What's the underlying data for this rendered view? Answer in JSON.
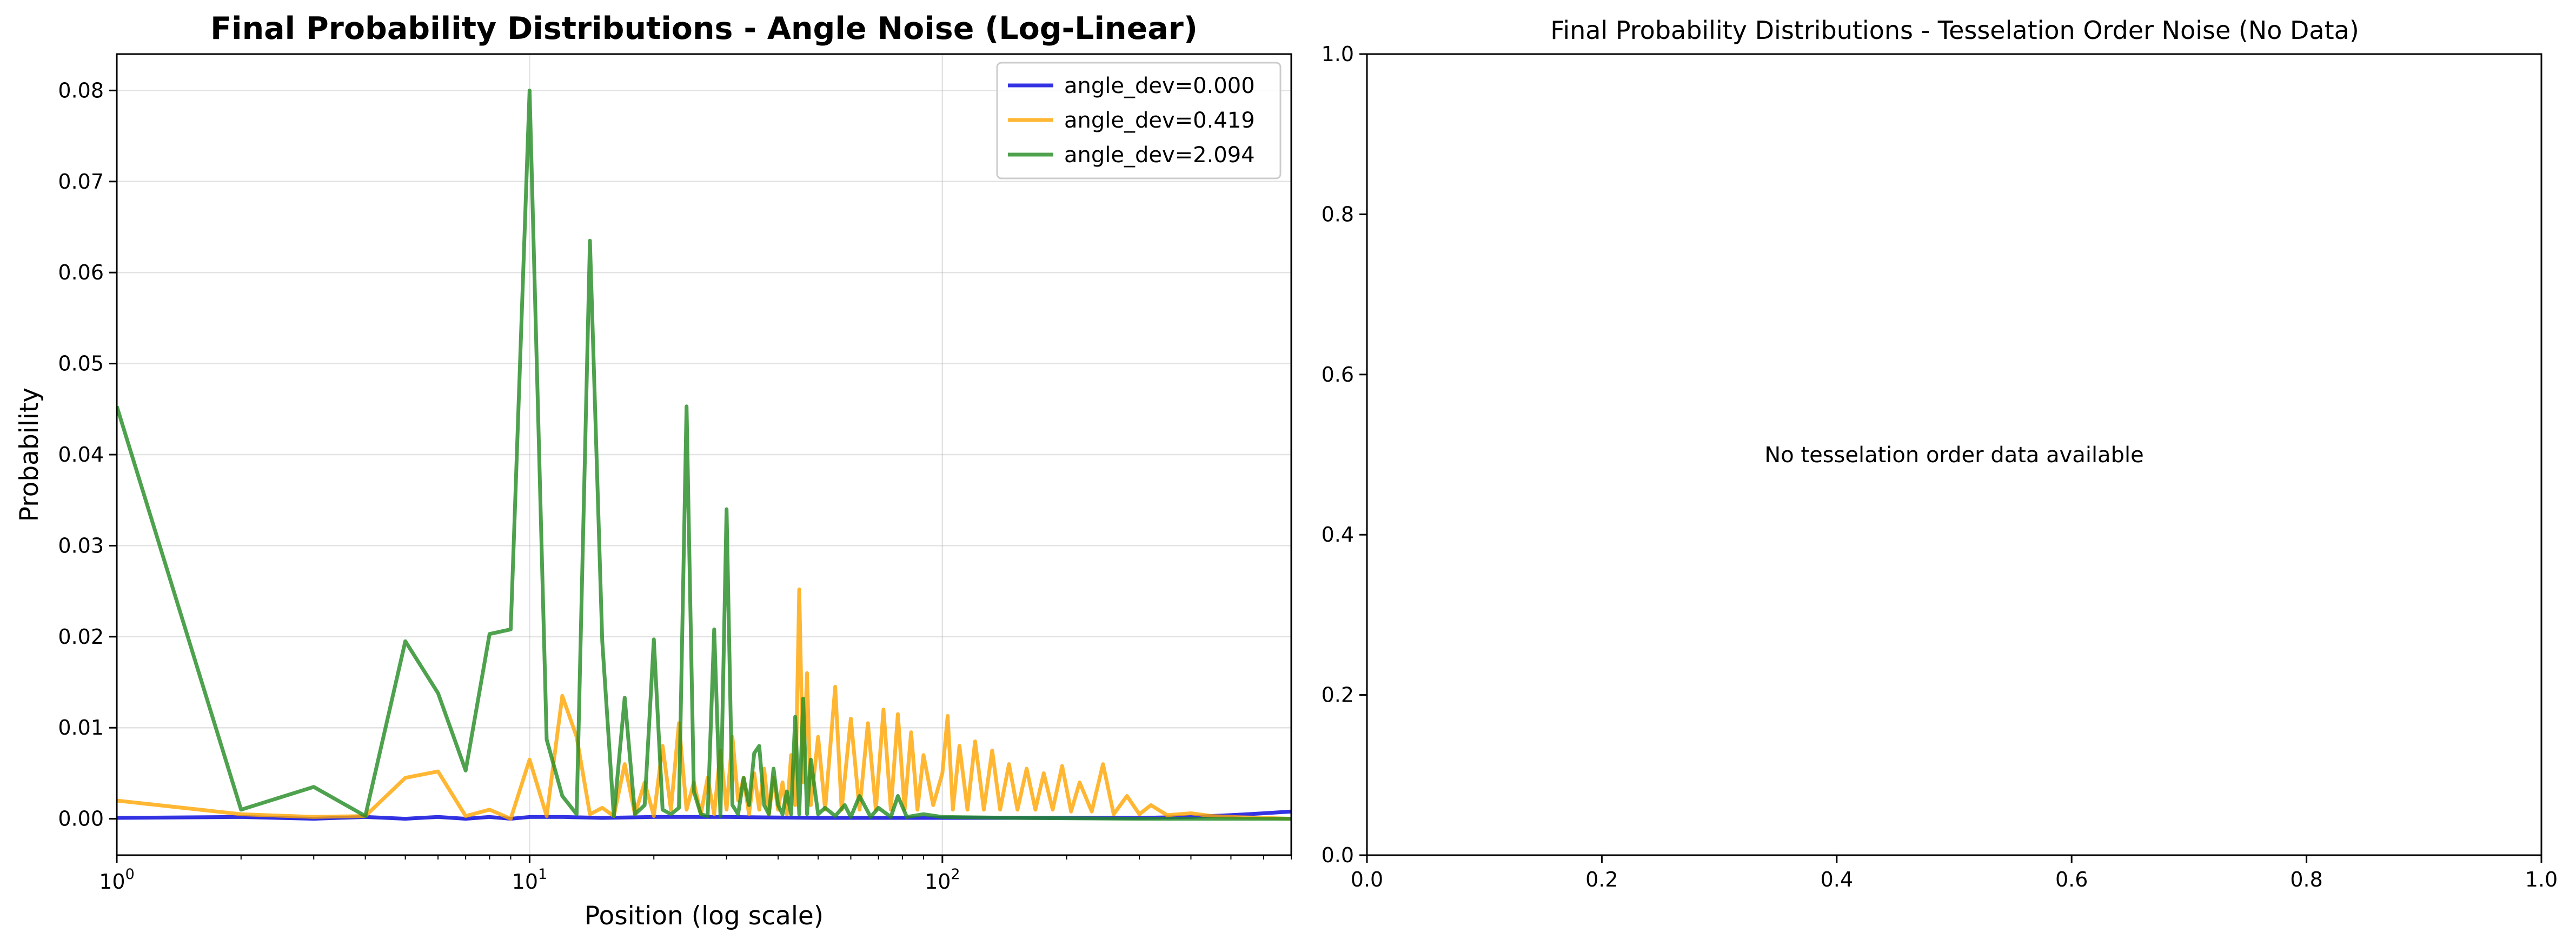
{
  "chart_data": [
    {
      "type": "line",
      "title": "Final Probability Distributions - Angle Noise (Log-Linear)",
      "xlabel": "Position (log scale)",
      "ylabel": "Probability",
      "xscale": "log",
      "xlim": [
        1,
        700
      ],
      "ylim": [
        -0.004,
        0.084
      ],
      "grid": true,
      "legend_position": "top-right",
      "x_tick_labels": [
        {
          "value": 1,
          "base": "10",
          "exp": "0"
        },
        {
          "value": 10,
          "base": "10",
          "exp": "1"
        },
        {
          "value": 100,
          "base": "10",
          "exp": "2"
        }
      ],
      "y_ticks": [
        0.0,
        0.01,
        0.02,
        0.03,
        0.04,
        0.05,
        0.06,
        0.07,
        0.08
      ],
      "y_tick_labels": [
        "0.00",
        "0.01",
        "0.02",
        "0.03",
        "0.04",
        "0.05",
        "0.06",
        "0.07",
        "0.08"
      ],
      "series": [
        {
          "name": "angle_dev=0.000",
          "color": "#0000dd",
          "points": [
            [
              1,
              0.0001
            ],
            [
              2,
              0.0002
            ],
            [
              3,
              0.0
            ],
            [
              4,
              0.0002
            ],
            [
              5,
              0.0
            ],
            [
              6,
              0.0002
            ],
            [
              7,
              0.0
            ],
            [
              8,
              0.0002
            ],
            [
              9,
              0.0
            ],
            [
              10,
              0.0002
            ],
            [
              12,
              0.0002
            ],
            [
              15,
              0.0001
            ],
            [
              20,
              0.0002
            ],
            [
              30,
              0.0002
            ],
            [
              50,
              0.0001
            ],
            [
              100,
              0.0001
            ],
            [
              200,
              0.0001
            ],
            [
              300,
              0.0001
            ],
            [
              400,
              0.0002
            ],
            [
              500,
              0.0004
            ],
            [
              600,
              0.0006
            ],
            [
              700,
              0.0008
            ]
          ]
        },
        {
          "name": "angle_dev=0.419",
          "color": "#ffa500",
          "points": [
            [
              1,
              0.002
            ],
            [
              2,
              0.0005
            ],
            [
              3,
              0.0002
            ],
            [
              4,
              0.0003
            ],
            [
              5,
              0.0045
            ],
            [
              6,
              0.0052
            ],
            [
              7,
              0.0003
            ],
            [
              8,
              0.001
            ],
            [
              9,
              0.0
            ],
            [
              10,
              0.0065
            ],
            [
              11,
              0.0003
            ],
            [
              12,
              0.0135
            ],
            [
              13,
              0.009
            ],
            [
              14,
              0.0005
            ],
            [
              15,
              0.0012
            ],
            [
              16,
              0.0003
            ],
            [
              17,
              0.006
            ],
            [
              18,
              0.0005
            ],
            [
              19,
              0.004
            ],
            [
              20,
              0.0003
            ],
            [
              21,
              0.008
            ],
            [
              22,
              0.001
            ],
            [
              23,
              0.0105
            ],
            [
              24,
              0.001
            ],
            [
              25,
              0.004
            ],
            [
              26,
              0.0005
            ],
            [
              27,
              0.0045
            ],
            [
              28,
              0.0005
            ],
            [
              29,
              0.0075
            ],
            [
              30,
              0.001
            ],
            [
              31,
              0.009
            ],
            [
              32,
              0.002
            ],
            [
              33,
              0.0045
            ],
            [
              34,
              0.0005
            ],
            [
              35,
              0.005
            ],
            [
              36,
              0.001
            ],
            [
              37,
              0.0055
            ],
            [
              38,
              0.0005
            ],
            [
              39,
              0.0045
            ],
            [
              40,
              0.001
            ],
            [
              41,
              0.004
            ],
            [
              42,
              0.0005
            ],
            [
              43,
              0.007
            ],
            [
              44,
              0.0015
            ],
            [
              45,
              0.0252
            ],
            [
              46,
              0.004
            ],
            [
              47,
              0.016
            ],
            [
              48,
              0.0015
            ],
            [
              50,
              0.009
            ],
            [
              52,
              0.001
            ],
            [
              55,
              0.0145
            ],
            [
              57,
              0.001
            ],
            [
              60,
              0.011
            ],
            [
              63,
              0.001
            ],
            [
              66,
              0.0105
            ],
            [
              69,
              0.001
            ],
            [
              72,
              0.012
            ],
            [
              75,
              0.001
            ],
            [
              78,
              0.0115
            ],
            [
              81,
              0.001
            ],
            [
              84,
              0.0095
            ],
            [
              87,
              0.001
            ],
            [
              90,
              0.007
            ],
            [
              95,
              0.0015
            ],
            [
              100,
              0.005
            ],
            [
              103,
              0.0113
            ],
            [
              106,
              0.001
            ],
            [
              110,
              0.008
            ],
            [
              115,
              0.001
            ],
            [
              120,
              0.0085
            ],
            [
              126,
              0.001
            ],
            [
              132,
              0.0075
            ],
            [
              138,
              0.001
            ],
            [
              145,
              0.006
            ],
            [
              152,
              0.001
            ],
            [
              160,
              0.0055
            ],
            [
              168,
              0.001
            ],
            [
              176,
              0.005
            ],
            [
              185,
              0.001
            ],
            [
              195,
              0.0058
            ],
            [
              205,
              0.0008
            ],
            [
              215,
              0.004
            ],
            [
              230,
              0.0008
            ],
            [
              245,
              0.006
            ],
            [
              260,
              0.0005
            ],
            [
              280,
              0.0025
            ],
            [
              300,
              0.0005
            ],
            [
              320,
              0.0015
            ],
            [
              350,
              0.0004
            ],
            [
              400,
              0.0006
            ],
            [
              450,
              0.0003
            ],
            [
              500,
              0.0002
            ],
            [
              600,
              0.0001
            ],
            [
              700,
              0.0
            ]
          ]
        },
        {
          "name": "angle_dev=2.094",
          "color": "#228b22",
          "points": [
            [
              1,
              0.0453
            ],
            [
              2,
              0.001
            ],
            [
              3,
              0.0035
            ],
            [
              4,
              0.0003
            ],
            [
              5,
              0.0195
            ],
            [
              6,
              0.0138
            ],
            [
              7,
              0.0053
            ],
            [
              8,
              0.0203
            ],
            [
              9,
              0.0208
            ],
            [
              10,
              0.08
            ],
            [
              11,
              0.0087
            ],
            [
              12,
              0.0025
            ],
            [
              13,
              0.0005
            ],
            [
              14,
              0.0635
            ],
            [
              15,
              0.0195
            ],
            [
              16,
              0.0003
            ],
            [
              17,
              0.0133
            ],
            [
              18,
              0.0005
            ],
            [
              19,
              0.0015
            ],
            [
              20,
              0.0197
            ],
            [
              21,
              0.001
            ],
            [
              22,
              0.0005
            ],
            [
              23,
              0.0012
            ],
            [
              24,
              0.0453
            ],
            [
              25,
              0.003
            ],
            [
              26,
              0.0005
            ],
            [
              27,
              0.0003
            ],
            [
              28,
              0.0208
            ],
            [
              29,
              0.0003
            ],
            [
              30,
              0.034
            ],
            [
              31,
              0.0015
            ],
            [
              32,
              0.0005
            ],
            [
              33,
              0.0045
            ],
            [
              34,
              0.0015
            ],
            [
              35,
              0.0072
            ],
            [
              36,
              0.008
            ],
            [
              37,
              0.0015
            ],
            [
              38,
              0.0005
            ],
            [
              39,
              0.0055
            ],
            [
              40,
              0.0015
            ],
            [
              41,
              0.0005
            ],
            [
              42,
              0.003
            ],
            [
              43,
              0.0005
            ],
            [
              44,
              0.0112
            ],
            [
              45,
              0.0005
            ],
            [
              46,
              0.0132
            ],
            [
              47,
              0.0005
            ],
            [
              48,
              0.0065
            ],
            [
              50,
              0.0005
            ],
            [
              52,
              0.0012
            ],
            [
              55,
              0.0003
            ],
            [
              58,
              0.0015
            ],
            [
              60,
              0.0002
            ],
            [
              63,
              0.0025
            ],
            [
              67,
              0.0002
            ],
            [
              70,
              0.0012
            ],
            [
              75,
              0.0002
            ],
            [
              78,
              0.0025
            ],
            [
              82,
              0.0002
            ],
            [
              90,
              0.0005
            ],
            [
              100,
              0.0002
            ],
            [
              150,
              0.0001
            ],
            [
              300,
              0.0
            ],
            [
              700,
              0.0
            ]
          ]
        }
      ]
    },
    {
      "type": "line",
      "title": "Final Probability Distributions - Tesselation Order Noise (No Data)",
      "xlim": [
        0,
        1
      ],
      "ylim": [
        0,
        1
      ],
      "grid": false,
      "annotation": "No tesselation order data available",
      "x_ticks": [
        0.0,
        0.2,
        0.4,
        0.6,
        0.8,
        1.0
      ],
      "x_tick_labels": [
        "0.0",
        "0.2",
        "0.4",
        "0.6",
        "0.8",
        "1.0"
      ],
      "y_ticks": [
        0.0,
        0.2,
        0.4,
        0.6,
        0.8,
        1.0
      ],
      "y_tick_labels": [
        "0.0",
        "0.2",
        "0.4",
        "0.6",
        "0.8",
        "1.0"
      ],
      "series": []
    }
  ]
}
